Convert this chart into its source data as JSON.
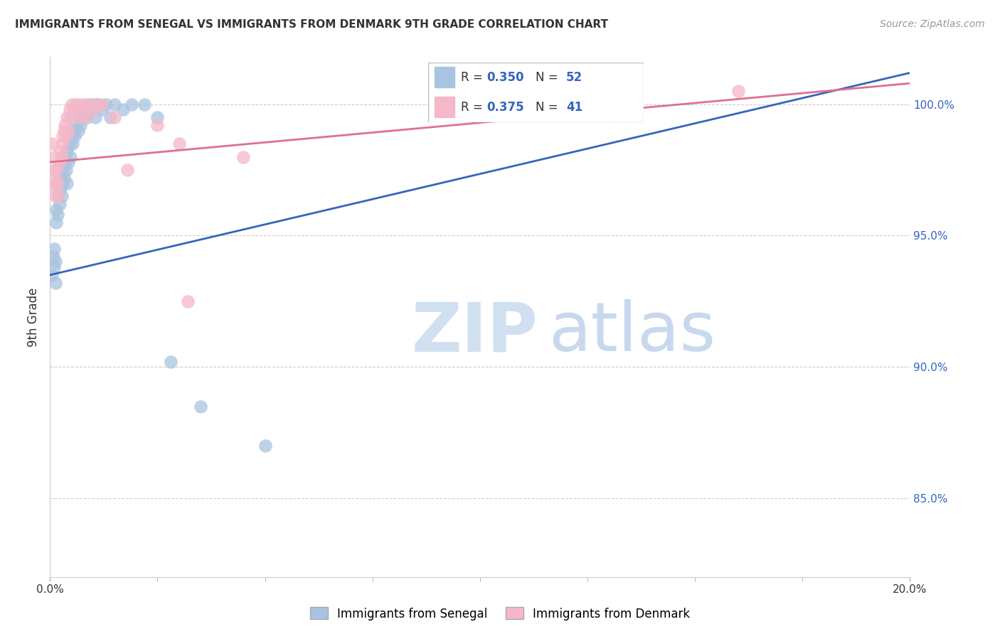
{
  "title": "IMMIGRANTS FROM SENEGAL VS IMMIGRANTS FROM DENMARK 9TH GRADE CORRELATION CHART",
  "source": "Source: ZipAtlas.com",
  "ylabel": "9th Grade",
  "y_ticks": [
    85.0,
    90.0,
    95.0,
    100.0
  ],
  "y_tick_labels": [
    "85.0%",
    "90.0%",
    "95.0%",
    "100.0%"
  ],
  "xmin": 0.0,
  "xmax": 20.0,
  "ymin": 82.0,
  "ymax": 101.8,
  "senegal_R": 0.35,
  "senegal_N": 52,
  "denmark_R": 0.375,
  "denmark_N": 41,
  "senegal_color": "#a8c4e0",
  "denmark_color": "#f4b8c8",
  "senegal_line_color": "#3366bb",
  "denmark_line_color": "#e07090",
  "legend_label_senegal": "Immigrants from Senegal",
  "legend_label_denmark": "Immigrants from Denmark",
  "background_color": "#ffffff",
  "grid_color": "#cccccc",
  "title_color": "#333333",
  "watermark_color": "#dde8f5",
  "senegal_x": [
    0.05,
    0.08,
    0.1,
    0.1,
    0.12,
    0.13,
    0.15,
    0.15,
    0.18,
    0.2,
    0.22,
    0.25,
    0.25,
    0.28,
    0.3,
    0.3,
    0.32,
    0.35,
    0.35,
    0.38,
    0.4,
    0.4,
    0.42,
    0.45,
    0.48,
    0.5,
    0.52,
    0.55,
    0.58,
    0.6,
    0.65,
    0.68,
    0.7,
    0.75,
    0.8,
    0.85,
    0.9,
    0.95,
    1.0,
    1.05,
    1.1,
    1.2,
    1.3,
    1.4,
    1.5,
    1.7,
    1.9,
    2.2,
    2.5,
    2.8,
    3.5,
    5.0
  ],
  "senegal_y": [
    93.5,
    94.2,
    93.8,
    94.5,
    94.0,
    93.2,
    95.5,
    96.0,
    95.8,
    96.5,
    96.2,
    96.8,
    97.2,
    96.5,
    97.0,
    97.5,
    97.2,
    97.8,
    98.0,
    97.5,
    97.0,
    98.2,
    97.8,
    98.5,
    98.0,
    98.8,
    98.5,
    99.0,
    98.8,
    99.2,
    99.0,
    99.5,
    99.2,
    99.5,
    99.8,
    99.5,
    100.0,
    99.8,
    100.0,
    99.5,
    100.0,
    99.8,
    100.0,
    99.5,
    100.0,
    99.8,
    100.0,
    100.0,
    99.5,
    90.2,
    88.5,
    87.0
  ],
  "denmark_x": [
    0.05,
    0.08,
    0.1,
    0.1,
    0.12,
    0.13,
    0.15,
    0.15,
    0.18,
    0.2,
    0.22,
    0.25,
    0.28,
    0.3,
    0.3,
    0.32,
    0.35,
    0.38,
    0.4,
    0.42,
    0.45,
    0.48,
    0.5,
    0.55,
    0.6,
    0.65,
    0.7,
    0.75,
    0.8,
    0.85,
    0.9,
    1.0,
    1.1,
    1.2,
    1.5,
    1.8,
    2.5,
    3.0,
    3.2,
    4.5,
    16.0
  ],
  "denmark_y": [
    98.5,
    97.5,
    98.0,
    97.0,
    96.5,
    97.2,
    96.8,
    97.5,
    97.0,
    96.5,
    97.8,
    98.2,
    98.0,
    98.5,
    98.8,
    99.0,
    99.2,
    98.8,
    99.5,
    99.0,
    99.8,
    99.5,
    100.0,
    99.8,
    100.0,
    99.5,
    100.0,
    99.8,
    100.0,
    99.5,
    100.0,
    99.8,
    100.0,
    100.0,
    99.5,
    97.5,
    99.2,
    98.5,
    92.5,
    98.0,
    100.5
  ],
  "senegal_trend_x": [
    0.0,
    20.0
  ],
  "senegal_trend_y": [
    93.5,
    101.2
  ],
  "denmark_trend_x": [
    0.0,
    20.0
  ],
  "denmark_trend_y": [
    97.8,
    100.8
  ]
}
